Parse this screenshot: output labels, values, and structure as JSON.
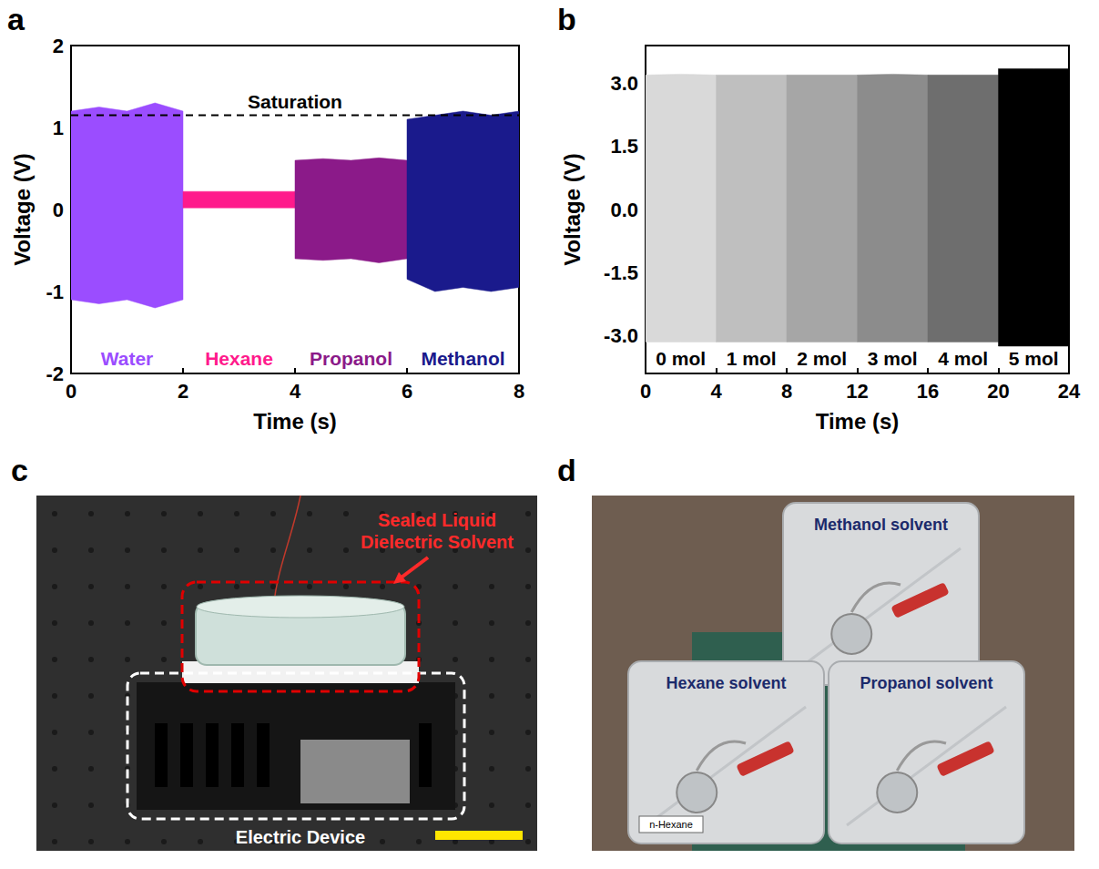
{
  "chart_data": [
    {
      "label": "a",
      "type": "band",
      "x_label": "Time (s)",
      "y_label": "Voltage (V)",
      "xlim": [
        0,
        8
      ],
      "xticks": [
        0,
        2,
        4,
        6,
        8
      ],
      "ylim": [
        -2,
        2
      ],
      "yticks": [
        -2,
        -1,
        0,
        1,
        2
      ],
      "annotations": [
        {
          "text": "Saturation",
          "y": 1.15
        }
      ],
      "series": [
        {
          "name": "Water",
          "color": "#9b4dff",
          "x": [
            0,
            0.5,
            1,
            1.5,
            2
          ],
          "upper": [
            1.2,
            1.25,
            1.2,
            1.3,
            1.2
          ],
          "lower": [
            -1.1,
            -1.15,
            -1.1,
            -1.2,
            -1.1
          ]
        },
        {
          "name": "Hexane",
          "color": "#ff1a8c",
          "x": [
            2,
            3,
            4
          ],
          "upper": [
            0.22,
            0.22,
            0.22
          ],
          "lower": [
            0.02,
            0.02,
            0.02
          ]
        },
        {
          "name": "Propanol",
          "color": "#8b1a89",
          "x": [
            4,
            4.5,
            5,
            5.5,
            6
          ],
          "upper": [
            0.6,
            0.62,
            0.6,
            0.63,
            0.6
          ],
          "lower": [
            -0.6,
            -0.62,
            -0.6,
            -0.65,
            -0.6
          ]
        },
        {
          "name": "Methanol",
          "color": "#1a1a8c",
          "x": [
            6,
            6.5,
            7,
            7.5,
            8
          ],
          "upper": [
            1.1,
            1.15,
            1.2,
            1.15,
            1.2
          ],
          "lower": [
            -0.85,
            -1.0,
            -0.95,
            -1.0,
            -0.95
          ]
        }
      ]
    },
    {
      "label": "b",
      "type": "band",
      "x_label": "Time (s)",
      "y_label": "Voltage (V)",
      "xlim": [
        0,
        24
      ],
      "xticks": [
        0,
        4,
        8,
        12,
        16,
        20,
        24
      ],
      "ylim": [
        -3.9,
        3.9
      ],
      "yticks": [
        {
          "value": -3,
          "label": "-3.0"
        },
        {
          "value": -1.5,
          "label": "-1.5"
        },
        {
          "value": 0,
          "label": "0.0"
        },
        {
          "value": 1.5,
          "label": "1.5"
        },
        {
          "value": 3,
          "label": "3.0"
        }
      ],
      "series": [
        {
          "name": "0 mol",
          "color": "#d9d9d9",
          "x": [
            0,
            2,
            4
          ],
          "upper": [
            3.2,
            3.22,
            3.2
          ],
          "lower": [
            -3.15,
            -3.15,
            -3.15
          ]
        },
        {
          "name": "1 mol",
          "color": "#bfbfbf",
          "x": [
            4,
            6,
            8
          ],
          "upper": [
            3.2,
            3.2,
            3.2
          ],
          "lower": [
            -3.15,
            -3.15,
            -3.15
          ]
        },
        {
          "name": "2 mol",
          "color": "#a6a6a6",
          "x": [
            8,
            10,
            12
          ],
          "upper": [
            3.2,
            3.2,
            3.2
          ],
          "lower": [
            -3.15,
            -3.15,
            -3.15
          ]
        },
        {
          "name": "3 mol",
          "color": "#8c8c8c",
          "x": [
            12,
            14,
            16
          ],
          "upper": [
            3.2,
            3.22,
            3.2
          ],
          "lower": [
            -3.15,
            -3.15,
            -3.15
          ]
        },
        {
          "name": "4 mol",
          "color": "#6e6e6e",
          "x": [
            16,
            18,
            20
          ],
          "upper": [
            3.2,
            3.2,
            3.2
          ],
          "lower": [
            -3.15,
            -3.15,
            -3.15
          ]
        },
        {
          "name": "5 mol",
          "color": "#000000",
          "x": [
            20,
            22,
            24
          ],
          "upper": [
            3.35,
            3.35,
            3.35
          ],
          "lower": [
            -3.25,
            -3.25,
            -3.25
          ]
        }
      ]
    }
  ],
  "photos": [
    {
      "label": "c",
      "solvent": "Sealed Liquid Dielectric Solvent",
      "device": "Electric Device"
    },
    {
      "label": "d",
      "cans": [
        {
          "name": "Methanol solvent"
        },
        {
          "name": "Hexane solvent",
          "tag": "n-Hexane"
        },
        {
          "name": "Propanol solvent"
        }
      ]
    }
  ]
}
